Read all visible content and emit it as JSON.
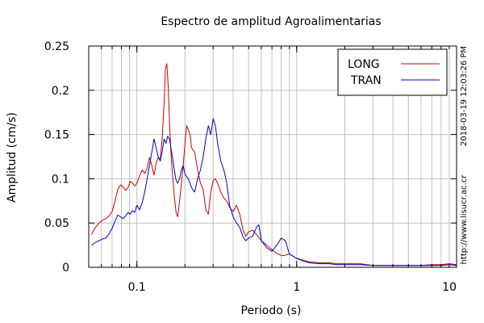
{
  "chart_data": {
    "type": "line",
    "title": "Espectro de amplitud Agroalimentarias",
    "xlabel": "Periodo (s)",
    "ylabel": "Amplitud (cm/s)",
    "x_scale": "log",
    "xlim": [
      0.05,
      10
    ],
    "ylim": [
      0,
      0.25
    ],
    "x_ticks": [
      {
        "value": 0.1,
        "label": "0.1"
      },
      {
        "value": 1,
        "label": "1"
      },
      {
        "value": 10,
        "label": "10"
      }
    ],
    "y_ticks": [
      {
        "value": 0,
        "label": "0"
      },
      {
        "value": 0.05,
        "label": "0.05"
      },
      {
        "value": 0.1,
        "label": "0.1"
      },
      {
        "value": 0.15,
        "label": "0.15"
      },
      {
        "value": 0.2,
        "label": "0.2"
      },
      {
        "value": 0.25,
        "label": "0.25"
      }
    ],
    "grid": true,
    "legend_position": "top-right",
    "side_text": [
      "2018-03-19 12:03:26 PM",
      "http://www.lisucr.ac.cr"
    ],
    "series": [
      {
        "name": "LONG",
        "color": "#cc0000",
        "points": [
          [
            0.052,
            0.037
          ],
          [
            0.055,
            0.045
          ],
          [
            0.058,
            0.05
          ],
          [
            0.061,
            0.053
          ],
          [
            0.064,
            0.055
          ],
          [
            0.067,
            0.058
          ],
          [
            0.07,
            0.063
          ],
          [
            0.073,
            0.075
          ],
          [
            0.076,
            0.088
          ],
          [
            0.079,
            0.093
          ],
          [
            0.082,
            0.091
          ],
          [
            0.085,
            0.087
          ],
          [
            0.088,
            0.09
          ],
          [
            0.091,
            0.097
          ],
          [
            0.094,
            0.095
          ],
          [
            0.097,
            0.092
          ],
          [
            0.1,
            0.095
          ],
          [
            0.104,
            0.103
          ],
          [
            0.108,
            0.11
          ],
          [
            0.112,
            0.106
          ],
          [
            0.116,
            0.112
          ],
          [
            0.12,
            0.124
          ],
          [
            0.124,
            0.115
          ],
          [
            0.128,
            0.104
          ],
          [
            0.132,
            0.118
          ],
          [
            0.136,
            0.124
          ],
          [
            0.14,
            0.122
          ],
          [
            0.144,
            0.145
          ],
          [
            0.148,
            0.185
          ],
          [
            0.151,
            0.225
          ],
          [
            0.154,
            0.23
          ],
          [
            0.157,
            0.205
          ],
          [
            0.16,
            0.165
          ],
          [
            0.164,
            0.125
          ],
          [
            0.168,
            0.1
          ],
          [
            0.172,
            0.078
          ],
          [
            0.176,
            0.062
          ],
          [
            0.18,
            0.057
          ],
          [
            0.185,
            0.075
          ],
          [
            0.19,
            0.095
          ],
          [
            0.195,
            0.115
          ],
          [
            0.2,
            0.14
          ],
          [
            0.205,
            0.16
          ],
          [
            0.21,
            0.155
          ],
          [
            0.215,
            0.15
          ],
          [
            0.22,
            0.135
          ],
          [
            0.23,
            0.13
          ],
          [
            0.24,
            0.11
          ],
          [
            0.25,
            0.095
          ],
          [
            0.26,
            0.088
          ],
          [
            0.27,
            0.065
          ],
          [
            0.28,
            0.06
          ],
          [
            0.29,
            0.085
          ],
          [
            0.3,
            0.098
          ],
          [
            0.31,
            0.1
          ],
          [
            0.32,
            0.095
          ],
          [
            0.335,
            0.085
          ],
          [
            0.35,
            0.078
          ],
          [
            0.365,
            0.075
          ],
          [
            0.38,
            0.068
          ],
          [
            0.4,
            0.063
          ],
          [
            0.42,
            0.07
          ],
          [
            0.44,
            0.06
          ],
          [
            0.46,
            0.043
          ],
          [
            0.48,
            0.035
          ],
          [
            0.5,
            0.04
          ],
          [
            0.53,
            0.042
          ],
          [
            0.56,
            0.037
          ],
          [
            0.6,
            0.03
          ],
          [
            0.65,
            0.025
          ],
          [
            0.7,
            0.02
          ],
          [
            0.76,
            0.015
          ],
          [
            0.82,
            0.013
          ],
          [
            0.9,
            0.015
          ],
          [
            1.0,
            0.01
          ],
          [
            1.1,
            0.008
          ],
          [
            1.2,
            0.006
          ],
          [
            1.4,
            0.005
          ],
          [
            1.6,
            0.005
          ],
          [
            1.8,
            0.004
          ],
          [
            2.0,
            0.004
          ],
          [
            2.5,
            0.004
          ],
          [
            3.0,
            0.002
          ],
          [
            4.0,
            0.002
          ],
          [
            5.0,
            0.002
          ],
          [
            6.0,
            0.002
          ],
          [
            7.0,
            0.003
          ],
          [
            8.0,
            0.003
          ],
          [
            9.0,
            0.004
          ],
          [
            10.0,
            0.003
          ]
        ]
      },
      {
        "name": "TRAN",
        "color": "#0000cc",
        "points": [
          [
            0.052,
            0.025
          ],
          [
            0.055,
            0.028
          ],
          [
            0.058,
            0.03
          ],
          [
            0.061,
            0.032
          ],
          [
            0.064,
            0.033
          ],
          [
            0.067,
            0.038
          ],
          [
            0.07,
            0.044
          ],
          [
            0.073,
            0.052
          ],
          [
            0.076,
            0.059
          ],
          [
            0.079,
            0.057
          ],
          [
            0.082,
            0.055
          ],
          [
            0.085,
            0.058
          ],
          [
            0.088,
            0.062
          ],
          [
            0.091,
            0.06
          ],
          [
            0.094,
            0.064
          ],
          [
            0.097,
            0.062
          ],
          [
            0.1,
            0.07
          ],
          [
            0.104,
            0.065
          ],
          [
            0.108,
            0.073
          ],
          [
            0.112,
            0.085
          ],
          [
            0.116,
            0.1
          ],
          [
            0.12,
            0.115
          ],
          [
            0.124,
            0.13
          ],
          [
            0.128,
            0.145
          ],
          [
            0.132,
            0.135
          ],
          [
            0.136,
            0.125
          ],
          [
            0.14,
            0.12
          ],
          [
            0.144,
            0.13
          ],
          [
            0.148,
            0.145
          ],
          [
            0.152,
            0.14
          ],
          [
            0.156,
            0.148
          ],
          [
            0.16,
            0.145
          ],
          [
            0.165,
            0.13
          ],
          [
            0.17,
            0.115
          ],
          [
            0.175,
            0.1
          ],
          [
            0.18,
            0.095
          ],
          [
            0.185,
            0.1
          ],
          [
            0.19,
            0.11
          ],
          [
            0.195,
            0.115
          ],
          [
            0.2,
            0.105
          ],
          [
            0.21,
            0.1
          ],
          [
            0.22,
            0.09
          ],
          [
            0.23,
            0.085
          ],
          [
            0.24,
            0.1
          ],
          [
            0.25,
            0.11
          ],
          [
            0.26,
            0.125
          ],
          [
            0.27,
            0.145
          ],
          [
            0.28,
            0.16
          ],
          [
            0.29,
            0.15
          ],
          [
            0.3,
            0.168
          ],
          [
            0.31,
            0.16
          ],
          [
            0.32,
            0.14
          ],
          [
            0.335,
            0.12
          ],
          [
            0.35,
            0.11
          ],
          [
            0.365,
            0.095
          ],
          [
            0.38,
            0.07
          ],
          [
            0.4,
            0.057
          ],
          [
            0.42,
            0.05
          ],
          [
            0.44,
            0.045
          ],
          [
            0.46,
            0.035
          ],
          [
            0.48,
            0.03
          ],
          [
            0.5,
            0.033
          ],
          [
            0.53,
            0.035
          ],
          [
            0.56,
            0.045
          ],
          [
            0.58,
            0.048
          ],
          [
            0.6,
            0.03
          ],
          [
            0.65,
            0.022
          ],
          [
            0.7,
            0.018
          ],
          [
            0.75,
            0.025
          ],
          [
            0.8,
            0.033
          ],
          [
            0.85,
            0.03
          ],
          [
            0.9,
            0.015
          ],
          [
            1.0,
            0.01
          ],
          [
            1.1,
            0.007
          ],
          [
            1.2,
            0.005
          ],
          [
            1.4,
            0.004
          ],
          [
            1.6,
            0.004
          ],
          [
            1.8,
            0.003
          ],
          [
            2.0,
            0.003
          ],
          [
            2.5,
            0.003
          ],
          [
            3.0,
            0.002
          ],
          [
            4.0,
            0.002
          ],
          [
            5.0,
            0.002
          ],
          [
            6.0,
            0.002
          ],
          [
            7.0,
            0.002
          ],
          [
            8.0,
            0.002
          ],
          [
            9.0,
            0.003
          ],
          [
            10.0,
            0.002
          ]
        ]
      }
    ]
  }
}
